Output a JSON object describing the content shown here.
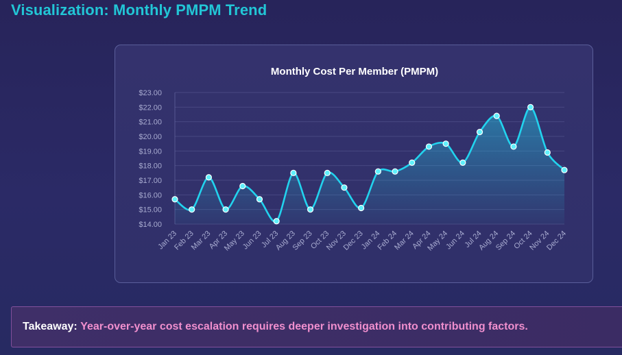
{
  "page": {
    "title": "Visualization: Monthly PMPM Trend"
  },
  "takeaway": {
    "label": "Takeaway:",
    "text": "Year-over-year cost escalation requires deeper investigation into contributing factors."
  },
  "colors": {
    "accent": "#22c6d6",
    "line": "#22d3ee",
    "takeaway_text": "#f08fce"
  },
  "chart_data": {
    "type": "line",
    "title": "Monthly Cost Per Member (PMPM)",
    "xlabel": "",
    "ylabel": "",
    "ylim": [
      14.0,
      23.0
    ],
    "y_ticks": [
      "$14.00",
      "$15.00",
      "$16.00",
      "$17.00",
      "$18.00",
      "$19.00",
      "$20.00",
      "$21.00",
      "$22.00",
      "$23.00"
    ],
    "grid": true,
    "area_fill": true,
    "categories": [
      "Jan 23",
      "Feb 23",
      "Mar 23",
      "Apr 23",
      "May 23",
      "Jun 23",
      "Jul 23",
      "Aug 23",
      "Sep 23",
      "Oct 23",
      "Nov 23",
      "Dec 23",
      "Jan 24",
      "Feb 24",
      "Mar 24",
      "Apr 24",
      "May 24",
      "Jun 24",
      "Jul 24",
      "Aug 24",
      "Sep 24",
      "Oct 24",
      "Nov 24",
      "Dec 24"
    ],
    "series": [
      {
        "values": [
          15.7,
          15.0,
          17.2,
          15.0,
          16.6,
          15.7,
          14.2,
          17.5,
          15.0,
          17.5,
          16.5,
          15.1,
          17.6,
          17.6,
          18.2,
          19.3,
          19.5,
          18.2,
          20.3,
          21.4,
          19.3,
          22.0,
          18.9,
          17.7
        ]
      }
    ]
  }
}
